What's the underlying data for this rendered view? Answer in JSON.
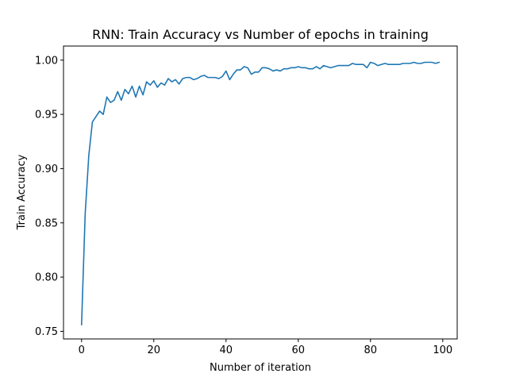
{
  "chart_data": {
    "type": "line",
    "title": "RNN: Train Accuracy vs Number of epochs in training",
    "xlabel": "Number of iteration",
    "ylabel": "Train Accuracy",
    "xlim": [
      -5,
      104
    ],
    "ylim": [
      0.743,
      1.013
    ],
    "xticks": [
      0,
      20,
      40,
      60,
      80,
      100
    ],
    "xtick_labels": [
      "0",
      "20",
      "40",
      "60",
      "80",
      "100"
    ],
    "yticks": [
      0.75,
      0.8,
      0.85,
      0.9,
      0.95,
      1.0
    ],
    "ytick_labels": [
      "0.75",
      "0.80",
      "0.85",
      "0.90",
      "0.95",
      "1.00"
    ],
    "grid": false,
    "legend": "none",
    "series": [
      {
        "color": "#1f77b4",
        "x": [
          0,
          1,
          2,
          3,
          4,
          5,
          6,
          7,
          8,
          9,
          10,
          11,
          12,
          13,
          14,
          15,
          16,
          17,
          18,
          19,
          20,
          21,
          22,
          23,
          24,
          25,
          26,
          27,
          28,
          29,
          30,
          31,
          32,
          33,
          34,
          35,
          36,
          37,
          38,
          39,
          40,
          41,
          42,
          43,
          44,
          45,
          46,
          47,
          48,
          49,
          50,
          51,
          52,
          53,
          54,
          55,
          56,
          57,
          58,
          59,
          60,
          61,
          62,
          63,
          64,
          65,
          66,
          67,
          68,
          69,
          70,
          71,
          72,
          73,
          74,
          75,
          76,
          77,
          78,
          79,
          80,
          81,
          82,
          83,
          84,
          85,
          86,
          87,
          88,
          89,
          90,
          91,
          92,
          93,
          94,
          95,
          96,
          97,
          98,
          99
        ],
        "y": [
          0.756,
          0.858,
          0.912,
          0.943,
          0.948,
          0.953,
          0.95,
          0.966,
          0.961,
          0.963,
          0.971,
          0.963,
          0.973,
          0.969,
          0.976,
          0.966,
          0.976,
          0.968,
          0.98,
          0.977,
          0.981,
          0.975,
          0.979,
          0.977,
          0.983,
          0.98,
          0.982,
          0.978,
          0.983,
          0.984,
          0.984,
          0.982,
          0.983,
          0.985,
          0.986,
          0.984,
          0.984,
          0.984,
          0.983,
          0.985,
          0.99,
          0.982,
          0.987,
          0.991,
          0.991,
          0.994,
          0.993,
          0.987,
          0.989,
          0.989,
          0.993,
          0.993,
          0.992,
          0.99,
          0.991,
          0.99,
          0.992,
          0.992,
          0.993,
          0.993,
          0.994,
          0.993,
          0.993,
          0.992,
          0.992,
          0.994,
          0.992,
          0.995,
          0.994,
          0.993,
          0.994,
          0.995,
          0.995,
          0.995,
          0.995,
          0.997,
          0.996,
          0.996,
          0.996,
          0.993,
          0.998,
          0.997,
          0.995,
          0.996,
          0.997,
          0.996,
          0.996,
          0.996,
          0.996,
          0.997,
          0.997,
          0.997,
          0.998,
          0.997,
          0.997,
          0.998,
          0.998,
          0.998,
          0.997,
          0.998
        ]
      }
    ]
  }
}
